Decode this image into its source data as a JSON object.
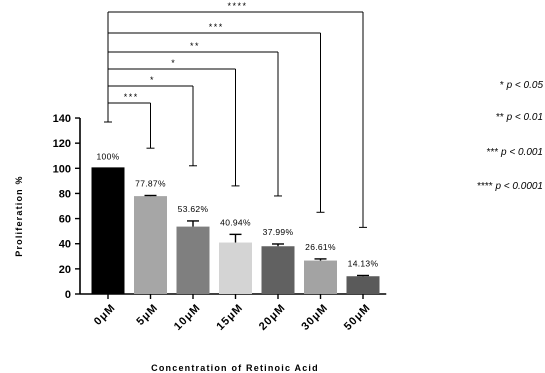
{
  "chart_data": {
    "type": "bar",
    "title": "",
    "xlabel": "Concentration of Retinoic Acid",
    "ylabel": "Proliferation %",
    "ylim": [
      0,
      140
    ],
    "yticks": [
      0,
      20,
      40,
      60,
      80,
      100,
      120,
      140
    ],
    "categories": [
      "0μM",
      "5μM",
      "10μM",
      "15μM",
      "20μM",
      "30μM",
      "50μM"
    ],
    "values": [
      100,
      77.87,
      53.62,
      40.94,
      37.99,
      26.61,
      14.13
    ],
    "errors": [
      0,
      0.5,
      4.5,
      6.5,
      1.8,
      1.3,
      0.6
    ],
    "data_labels": [
      "100%",
      "77.87%",
      "53.62%",
      "40.94%",
      "37.99%",
      "26.61%",
      "14.13%"
    ],
    "bar_colors": [
      "#000000",
      "#a6a6a6",
      "#7f7f7f",
      "#d4d4d4",
      "#616161",
      "#a3a3a3",
      "#5a5a5a"
    ],
    "significance": [
      {
        "vs": "5μM",
        "stars": "***"
      },
      {
        "vs": "10μM",
        "stars": "*"
      },
      {
        "vs": "15μM",
        "stars": "*"
      },
      {
        "vs": "20μM",
        "stars": "**"
      },
      {
        "vs": "30μM",
        "stars": "***"
      },
      {
        "vs": "50μM",
        "stars": "****"
      }
    ],
    "legend": [
      {
        "stars": "*",
        "text": "p < 0.05"
      },
      {
        "stars": "**",
        "text": "p < 0.01"
      },
      {
        "stars": "***",
        "text": "p < 0.001"
      },
      {
        "stars": "****",
        "text": "p < 0.0001"
      }
    ],
    "legend_position": "right"
  }
}
